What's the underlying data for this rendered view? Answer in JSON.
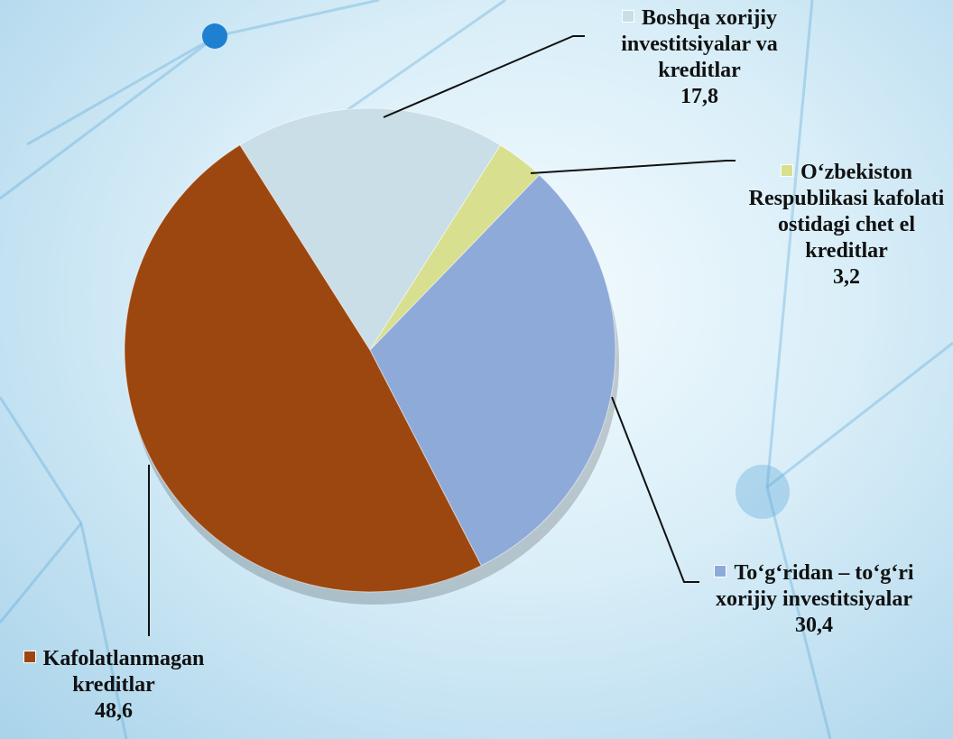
{
  "chart_data": {
    "type": "pie",
    "categories": [
      "Boshqa  xorijiy investitsiyalar va kreditlar",
      "O‘zbekiston Respublikasi kafolati ostidagi chet el kreditlar",
      "To‘g‘ridan – to‘g‘ri xorijiy investitsiyalar",
      "Kafolatlanmagan kreditlar"
    ],
    "values": [
      17.8,
      3.2,
      30.4,
      48.6
    ],
    "value_labels": [
      "17,8",
      "3,2",
      "30,4",
      "48,6"
    ],
    "colors": [
      "#c9dee6",
      "#d8df8e",
      "#8eaad9",
      "#9c470f"
    ]
  }
}
